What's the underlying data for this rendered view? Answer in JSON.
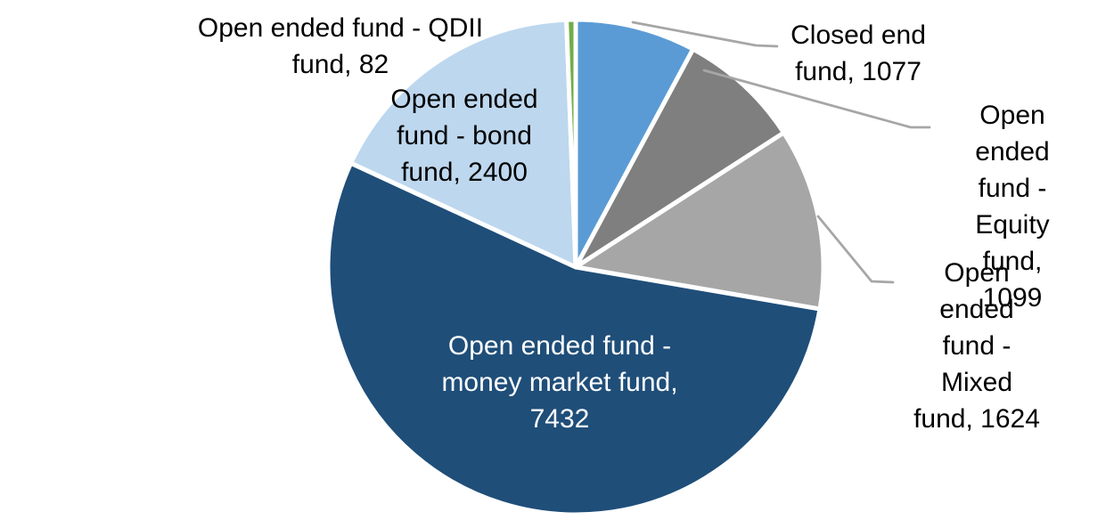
{
  "chart_data": {
    "type": "pie",
    "title": "",
    "legend_position": "none",
    "gridlines": "off",
    "background_color": "#FFFFFF",
    "slices": [
      {
        "id": "closed-end-fund",
        "name": "Closed end fund",
        "value": 1077,
        "color": "#5B9BD5",
        "label_text": "Closed end\nfund, 1077",
        "label_color": "#000000",
        "label_placement": "outside-with-leader"
      },
      {
        "id": "equity-fund",
        "name": "Open ended fund - Equity fund",
        "value": 1099,
        "color": "#7F7F7F",
        "label_text": "Open ended\nfund - Equity\nfund, 1099",
        "label_color": "#000000",
        "label_placement": "outside-with-leader"
      },
      {
        "id": "mixed-fund",
        "name": "Open ended fund - Mixed fund",
        "value": 1624,
        "color": "#A6A6A6",
        "label_text": "Open ended\nfund - Mixed\nfund, 1624",
        "label_color": "#000000",
        "label_placement": "outside-with-leader"
      },
      {
        "id": "money-market-fund",
        "name": "Open ended fund - money market fund",
        "value": 7432,
        "color": "#1F4E79",
        "label_text": "Open ended fund -\nmoney market fund,\n7432",
        "label_color": "#FFFFFF",
        "label_placement": "inside"
      },
      {
        "id": "bond-fund",
        "name": "Open ended fund - bond fund",
        "value": 2400,
        "color": "#BDD7EE",
        "label_text": "Open ended\nfund - bond\nfund, 2400",
        "label_color": "#000000",
        "label_placement": "inside"
      },
      {
        "id": "qdii-fund",
        "name": "Open ended fund - QDII fund",
        "value": 82,
        "color": "#70AD47",
        "label_text": "Open ended fund - QDII\nfund, 82",
        "label_color": "#000000",
        "label_placement": "outside"
      }
    ],
    "layout": {
      "start_angle_deg": 0,
      "direction": "clockwise",
      "slice_border_color": "#FFFFFF",
      "leader_line_color": "#A6A6A6"
    }
  }
}
